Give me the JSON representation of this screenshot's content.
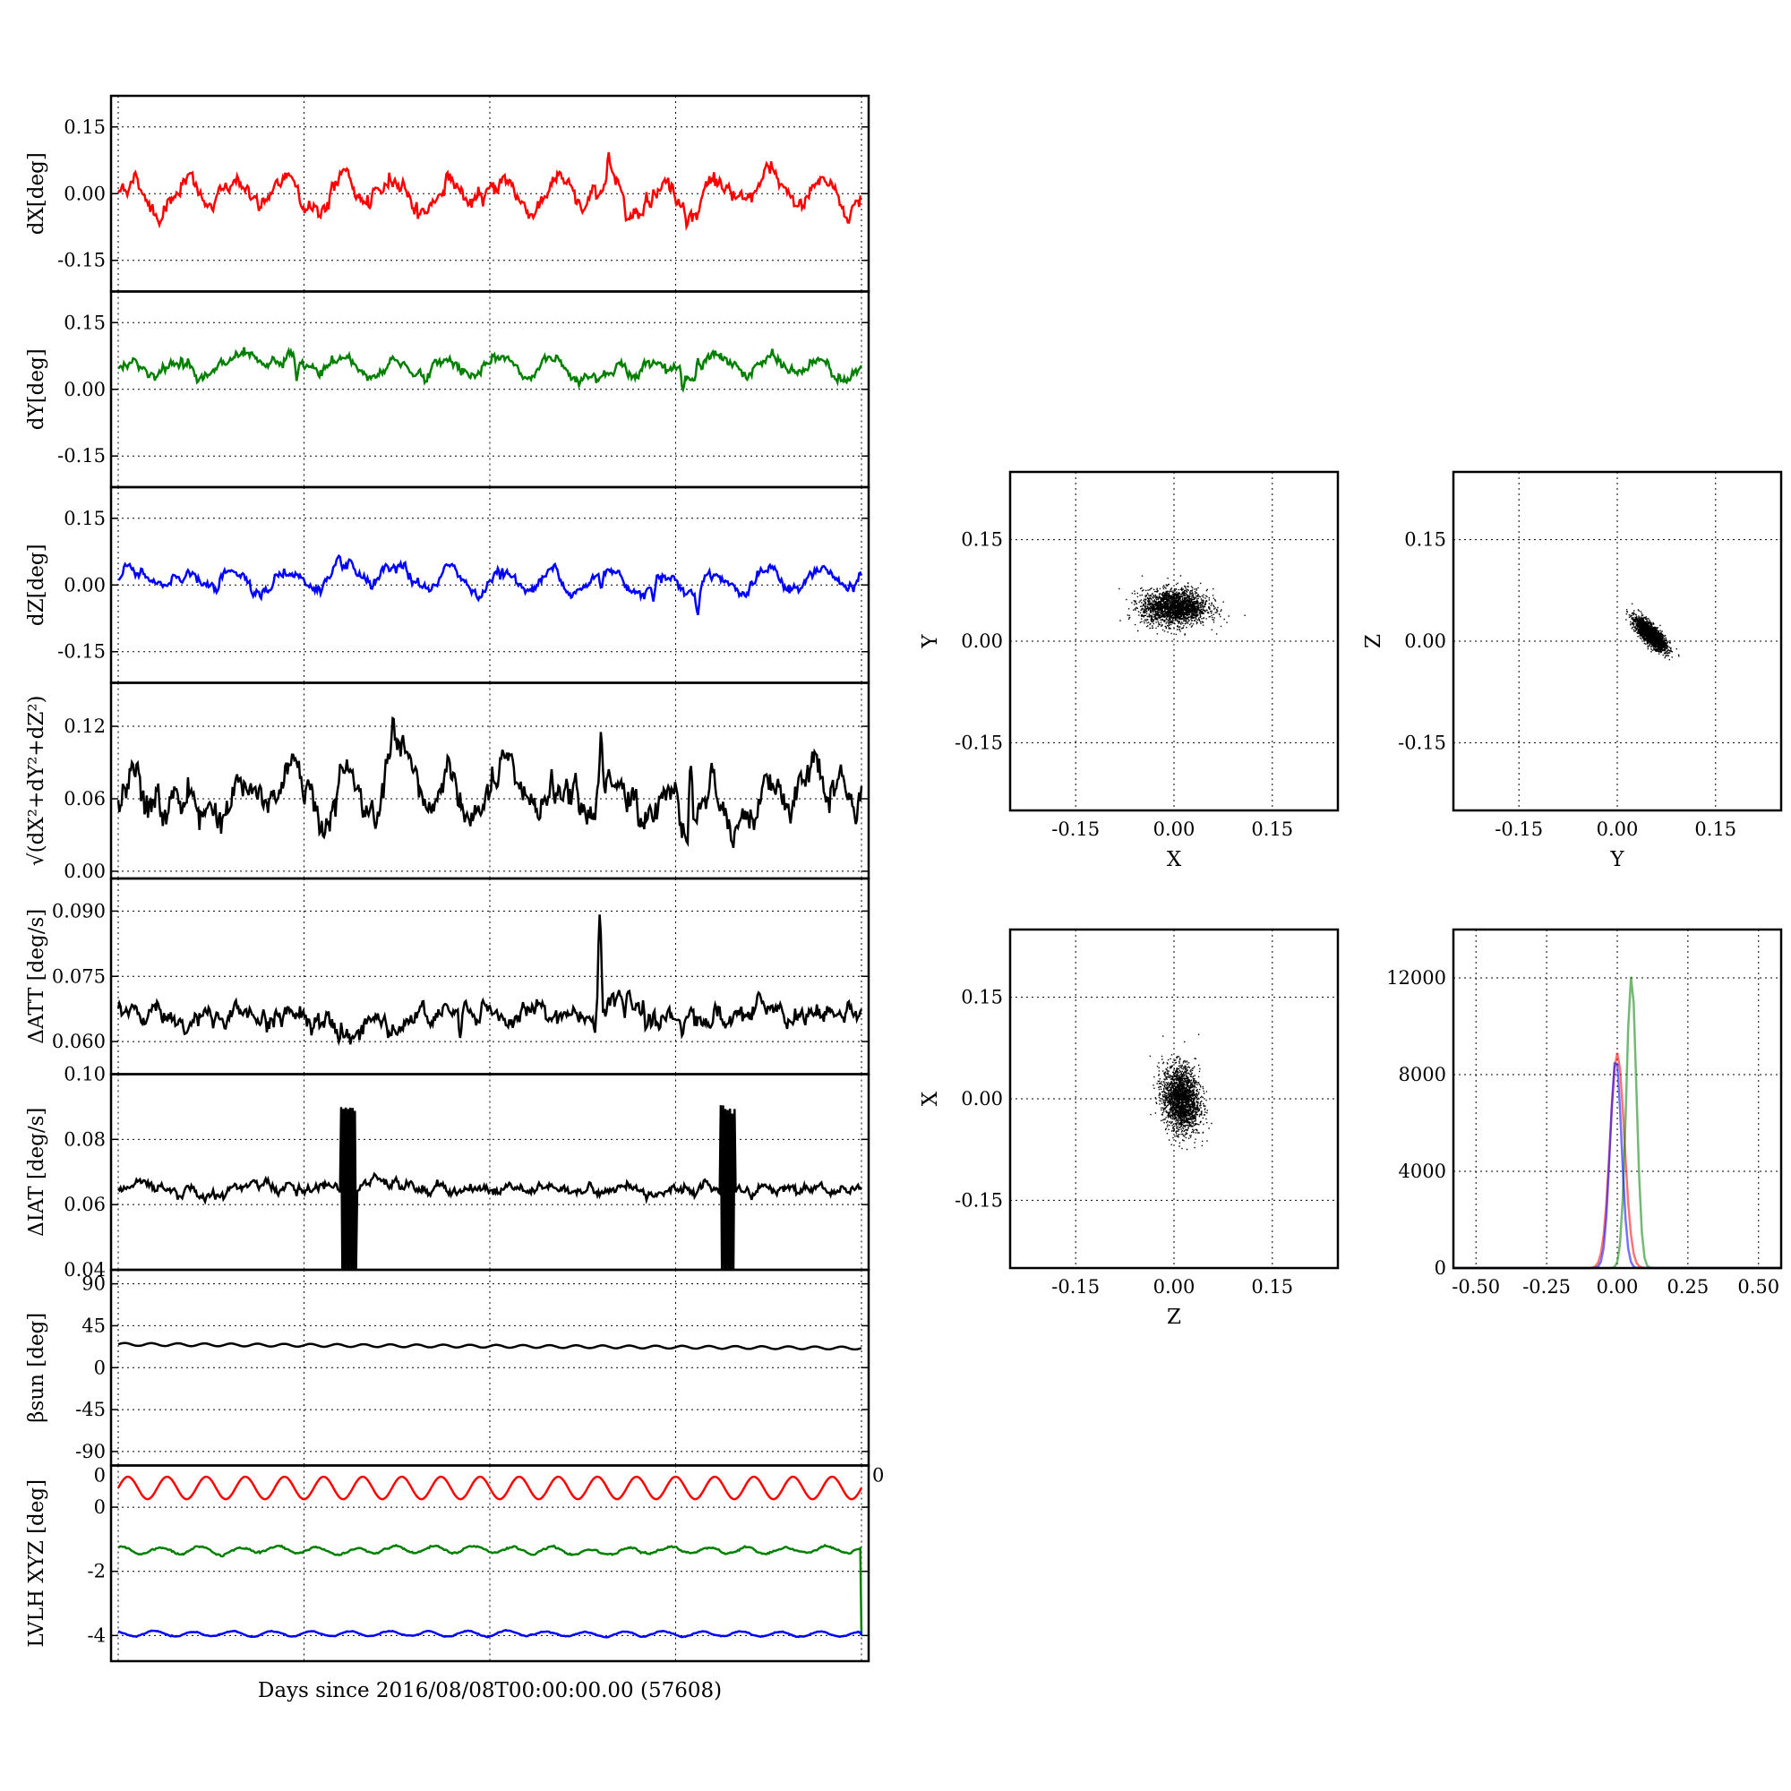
{
  "figure": {
    "xlabel": "Days since 2016/08/08T00:00:00.00 (57608)"
  },
  "chart_data": [
    {
      "id": "ts-dx",
      "type": "line",
      "ylabel": "dX[deg]",
      "ylim": [
        -0.22,
        0.22
      ],
      "yticks": [
        "0.15",
        "0.00",
        "-0.15"
      ],
      "ytick_values": [
        0.15,
        0.0,
        -0.15
      ],
      "grid": true,
      "xlim": [
        0,
        1
      ],
      "series": [
        {
          "color": "#ff0000",
          "base": 0.0,
          "amp": 0.035,
          "cycles": 14,
          "noise": 0.012,
          "spikes": [
            [
              0.66,
              0.05
            ],
            [
              0.71,
              0.04
            ],
            [
              0.76,
              0.03
            ]
          ]
        }
      ]
    },
    {
      "id": "ts-dy",
      "type": "line",
      "ylabel": "dY[deg]",
      "ylim": [
        -0.22,
        0.22
      ],
      "yticks": [
        "0.15",
        "0.00",
        "-0.15"
      ],
      "ytick_values": [
        0.15,
        0.0,
        -0.15
      ],
      "grid": true,
      "xlim": [
        0,
        1
      ],
      "series": [
        {
          "color": "#008000",
          "base": 0.05,
          "amp": 0.015,
          "cycles": 14,
          "noise": 0.008,
          "spikes": [
            [
              0.24,
              -0.04
            ],
            [
              0.76,
              -0.04
            ],
            [
              0.78,
              0.03
            ]
          ]
        }
      ]
    },
    {
      "id": "ts-dz",
      "type": "line",
      "ylabel": "dZ[deg]",
      "ylim": [
        -0.22,
        0.22
      ],
      "yticks": [
        "0.15",
        "0.00",
        "-0.15"
      ],
      "ytick_values": [
        0.15,
        0.0,
        -0.15
      ],
      "grid": true,
      "xlim": [
        0,
        1
      ],
      "series": [
        {
          "color": "#0000ff",
          "base": 0.01,
          "amp": 0.02,
          "cycles": 14,
          "noise": 0.008,
          "spikes": [
            [
              0.65,
              -0.04
            ],
            [
              0.72,
              -0.04
            ],
            [
              0.78,
              -0.05
            ]
          ]
        }
      ]
    },
    {
      "id": "ts-norm",
      "type": "line",
      "ylabel": "√(dX²+dY²+dZ²)",
      "ylim": [
        -0.006,
        0.156
      ],
      "yticks": [
        "0.12",
        "0.06",
        "0.00"
      ],
      "ytick_values": [
        0.12,
        0.06,
        0.0
      ],
      "grid": true,
      "xlim": [
        0,
        1
      ],
      "series": [
        {
          "color": "#000000",
          "base": 0.06,
          "amp": 0.015,
          "cycles": 14,
          "noise": 0.009,
          "spikes": [
            [
              0.65,
              0.05
            ],
            [
              0.77,
              0.06
            ],
            [
              0.25,
              -0.03
            ],
            [
              0.37,
              0.04
            ]
          ]
        }
      ]
    },
    {
      "id": "ts-att",
      "type": "line",
      "ylabel": "ΔATT [deg/s]",
      "ylim": [
        0.0525,
        0.0975
      ],
      "yticks": [
        "0.090",
        "0.075",
        "0.060"
      ],
      "ytick_values": [
        0.09,
        0.075,
        0.06
      ],
      "grid": true,
      "xlim": [
        0,
        1
      ],
      "series": [
        {
          "color": "#000000",
          "base": 0.066,
          "amp": 0.0,
          "cycles": 40,
          "noise": 0.0015,
          "spikes": [
            [
              0.648,
              0.025
            ],
            [
              0.46,
              -0.008
            ],
            [
              0.2,
              -0.004
            ],
            [
              0.26,
              -0.003
            ],
            [
              0.71,
              -0.005
            ],
            [
              0.9,
              -0.004
            ]
          ]
        }
      ]
    },
    {
      "id": "ts-iat",
      "type": "line",
      "ylabel": "ΔIAT [deg/s]",
      "ylim": [
        0.04,
        0.1
      ],
      "yticks": [
        "0.10",
        "0.08",
        "0.06",
        "0.04"
      ],
      "ytick_values": [
        0.1,
        0.08,
        0.06,
        0.04
      ],
      "grid": true,
      "xlim": [
        0,
        1
      ],
      "series": [
        {
          "color": "#000000",
          "base": 0.065,
          "amp": 0.0,
          "cycles": 28,
          "noise": 0.001,
          "bursts": [
            [
              0.3,
              0.32,
              0.025
            ],
            [
              0.81,
              0.83,
              0.025
            ]
          ]
        }
      ]
    },
    {
      "id": "ts-beta",
      "type": "line",
      "ylabel": "βsun [deg]",
      "ylim": [
        -105,
        105
      ],
      "yticks": [
        "90",
        "45",
        "0",
        "-45",
        "-90"
      ],
      "ytick_values": [
        90,
        45,
        0,
        -45,
        -90
      ],
      "grid": true,
      "xlim": [
        0,
        1
      ],
      "series": [
        {
          "color": "#000000",
          "base": 25,
          "amp": 1.5,
          "cycles": 28,
          "noise": 0.0,
          "trend": -4
        }
      ]
    },
    {
      "id": "ts-lvlh",
      "type": "line",
      "ylabel": "LVLH XYZ [deg]",
      "ylim": [
        -4.8,
        1.3
      ],
      "yticks": [
        "0",
        "-2",
        "-4"
      ],
      "ytick_values": [
        0,
        -2,
        -4
      ],
      "extra_ticks": [
        "0",
        "0"
      ],
      "grid": true,
      "xlim": [
        0,
        1
      ],
      "series": [
        {
          "color": "#ff0000",
          "base": 0.6,
          "amp": 0.35,
          "cycles": 19,
          "noise": 0.0
        },
        {
          "color": "#008000",
          "base": -1.35,
          "amp": 0.1,
          "cycles": 19,
          "noise": 0.02
        },
        {
          "color": "#0000ff",
          "base": -3.95,
          "amp": 0.08,
          "cycles": 19,
          "noise": 0.01
        }
      ]
    },
    {
      "id": "sc-xy",
      "type": "scatter",
      "xlabel": "X",
      "ylabel": "Y",
      "xlim": [
        -0.25,
        0.25
      ],
      "ylim": [
        -0.25,
        0.25
      ],
      "xticks": [
        "-0.15",
        "0.00",
        "0.15"
      ],
      "yticks": [
        "0.15",
        "0.00",
        "-0.15"
      ],
      "tick_values": [
        -0.15,
        0.0,
        0.15
      ],
      "grid": true,
      "center": [
        0.0,
        0.05
      ],
      "spread": [
        0.025,
        0.013
      ],
      "corr": 0.0
    },
    {
      "id": "sc-yz",
      "type": "scatter",
      "xlabel": "Y",
      "ylabel": "Z",
      "xlim": [
        -0.25,
        0.25
      ],
      "ylim": [
        -0.25,
        0.25
      ],
      "xticks": [
        "-0.15",
        "0.00",
        "0.15"
      ],
      "yticks": [
        "0.15",
        "0.00",
        "-0.15"
      ],
      "tick_values": [
        -0.15,
        0.0,
        0.15
      ],
      "grid": true,
      "center": [
        0.05,
        0.01
      ],
      "spread": [
        0.012,
        0.014
      ],
      "corr": -0.85
    },
    {
      "id": "sc-zx",
      "type": "scatter",
      "xlabel": "Z",
      "ylabel": "X",
      "xlim": [
        -0.25,
        0.25
      ],
      "ylim": [
        -0.25,
        0.25
      ],
      "xticks": [
        "-0.15",
        "0.00",
        "0.15"
      ],
      "yticks": [
        "0.15",
        "0.00",
        "-0.15"
      ],
      "tick_values": [
        -0.15,
        0.0,
        0.15
      ],
      "grid": true,
      "center": [
        0.01,
        0.0
      ],
      "spread": [
        0.014,
        0.025
      ],
      "corr": -0.3
    },
    {
      "id": "hist",
      "type": "histogram",
      "xlim": [
        -0.58,
        0.58
      ],
      "ylim": [
        0,
        14000
      ],
      "xticks": [
        "-0.50",
        "-0.25",
        "0.00",
        "0.25",
        "0.50"
      ],
      "xtick_values": [
        -0.5,
        -0.25,
        0.0,
        0.25,
        0.5
      ],
      "yticks": [
        "12000",
        "8000",
        "4000",
        "0"
      ],
      "ytick_values": [
        12000,
        8000,
        4000,
        0
      ],
      "grid": true,
      "series": [
        {
          "color": "#ff0000",
          "mean": 0.0,
          "sigma": 0.025,
          "peak": 8900
        },
        {
          "color": "#008000",
          "mean": 0.05,
          "sigma": 0.018,
          "peak": 12100
        },
        {
          "color": "#0000ff",
          "mean": -0.005,
          "sigma": 0.02,
          "peak": 8700
        }
      ]
    }
  ]
}
